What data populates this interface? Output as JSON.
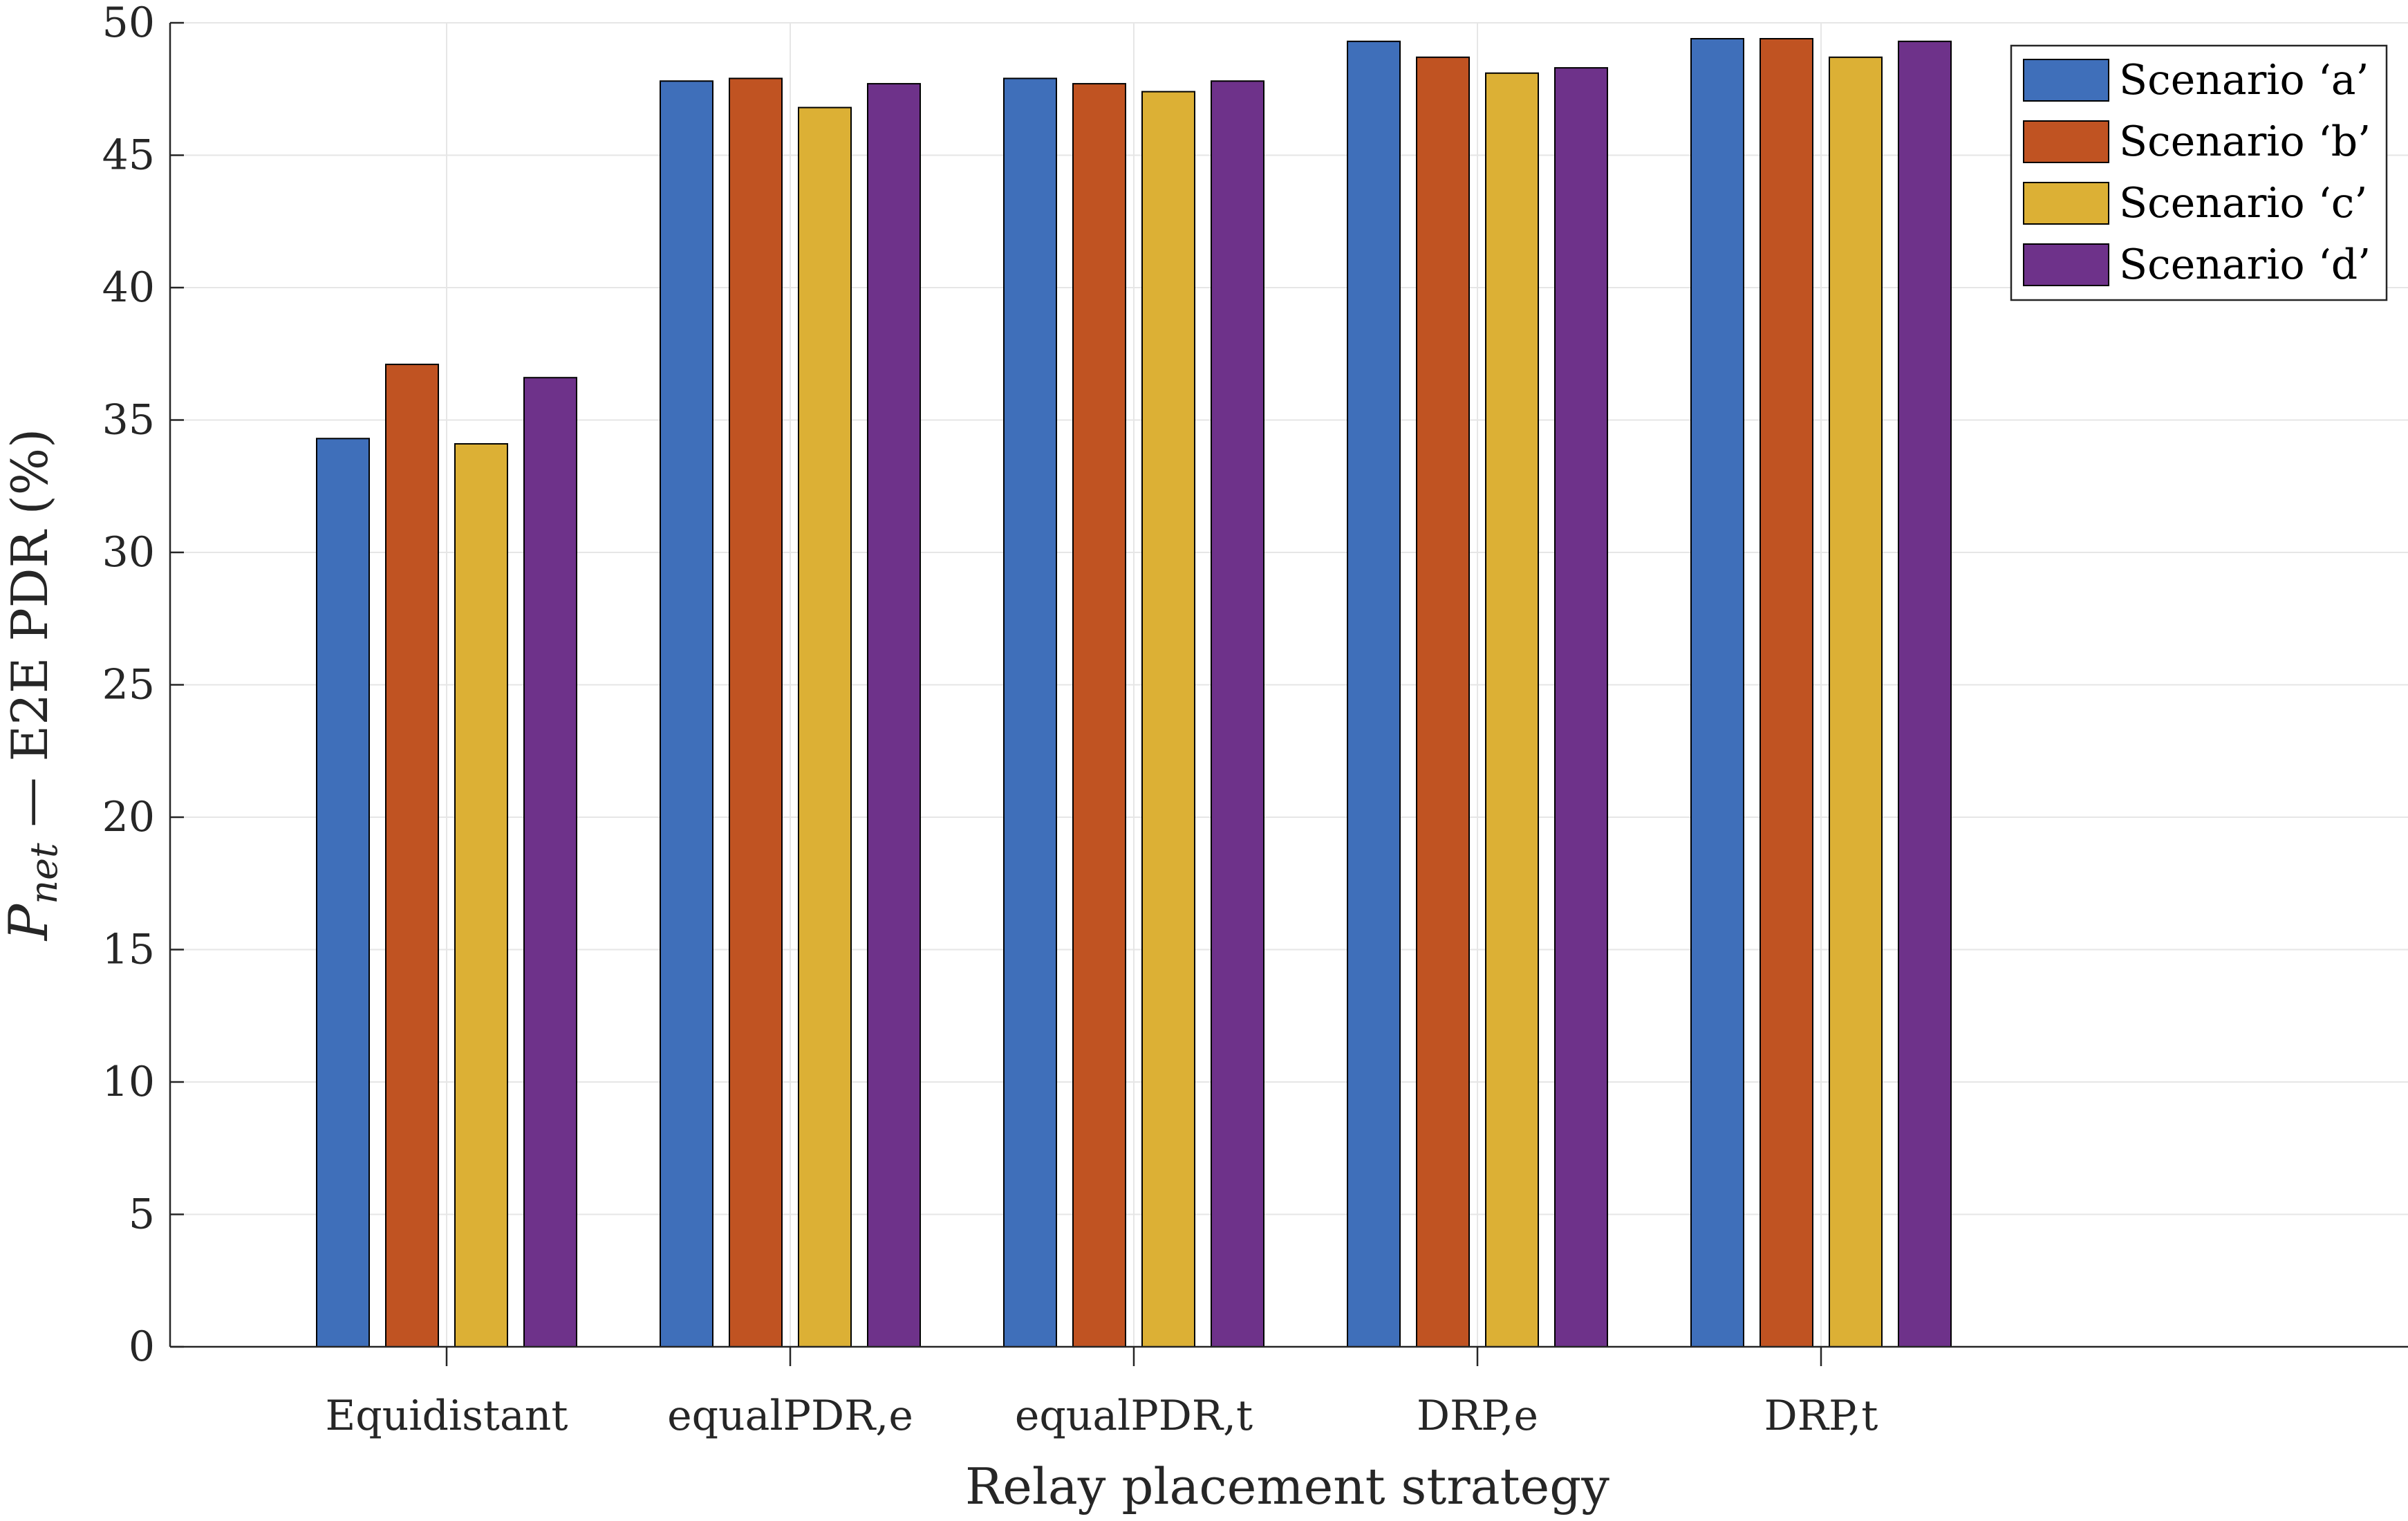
{
  "chart_data": {
    "type": "bar",
    "title": "",
    "xlabel": "Relay placement strategy",
    "ylabel_main": "P",
    "ylabel_sub": "net",
    "ylabel_rest": " — E2E PDR (%)",
    "categories": [
      "Equidistant",
      "equalPDR,e",
      "equalPDR,t",
      "DRP,e",
      "DRP,t"
    ],
    "ylim": [
      0,
      50
    ],
    "yticks": [
      "0",
      "5",
      "10",
      "15",
      "20",
      "25",
      "30",
      "35",
      "40",
      "45",
      "50"
    ],
    "grid": true,
    "legend_position": "top-right",
    "series": [
      {
        "name": "Scenario ‘a’",
        "color": "#3f6fba",
        "values": [
          34.3,
          47.8,
          47.9,
          49.3,
          49.4
        ]
      },
      {
        "name": "Scenario ‘b’",
        "color": "#c05322",
        "values": [
          37.1,
          47.9,
          47.7,
          48.7,
          49.4
        ]
      },
      {
        "name": "Scenario ‘c’",
        "color": "#dcb035",
        "values": [
          34.1,
          46.8,
          47.4,
          48.1,
          48.7
        ]
      },
      {
        "name": "Scenario ‘d’",
        "color": "#6e328a",
        "values": [
          36.6,
          47.7,
          47.8,
          48.3,
          49.3
        ]
      }
    ]
  }
}
